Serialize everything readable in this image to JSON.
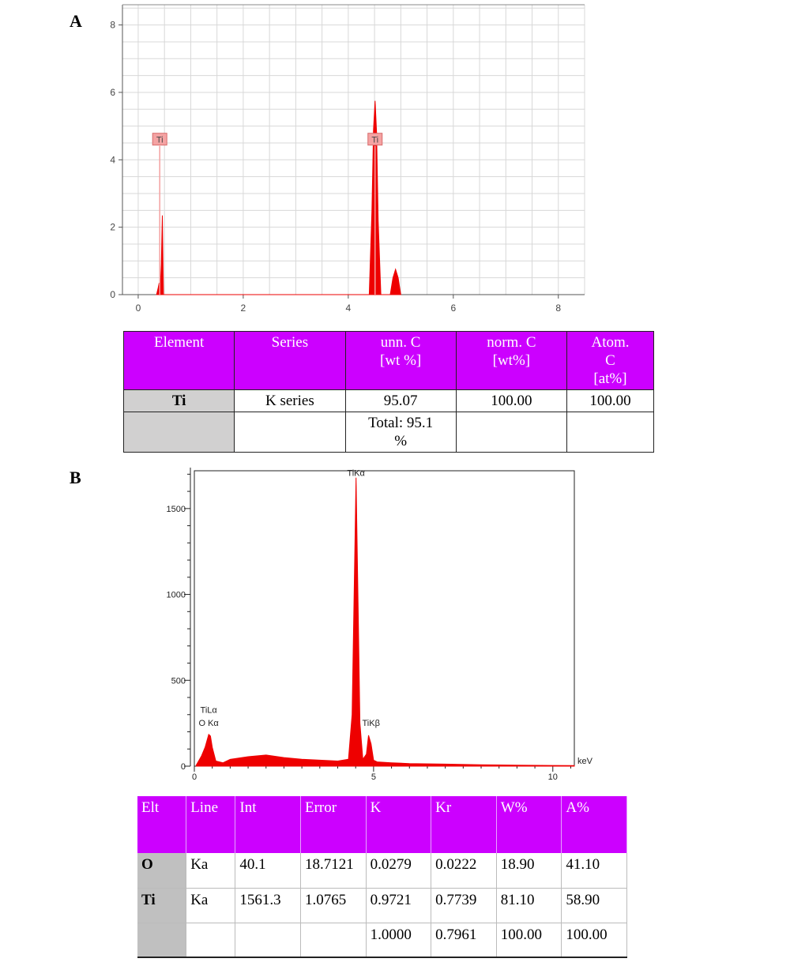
{
  "panel_a": {
    "label": "A",
    "chart_data": {
      "type": "area",
      "title": "",
      "xlabel": "",
      "ylabel": "",
      "xlim": [
        -0.3,
        8.5
      ],
      "ylim": [
        0,
        8.6
      ],
      "x_ticks": [
        "0",
        "2",
        "4",
        "6",
        "8"
      ],
      "y_ticks": [
        "0",
        "2",
        "4",
        "6",
        "8"
      ],
      "grid": true,
      "series": [
        {
          "x": [
            0.35,
            0.38,
            0.4,
            0.42,
            0.44,
            0.46,
            0.48,
            4.4,
            4.45,
            4.48,
            4.51,
            4.54,
            4.57,
            4.62,
            4.8,
            4.85,
            4.9,
            4.95,
            5.0
          ],
          "y": [
            0,
            0.2,
            0.35,
            0.2,
            0.9,
            2.35,
            0,
            0,
            2.5,
            4.9,
            5.75,
            4.8,
            2.2,
            0,
            0,
            0.5,
            0.75,
            0.5,
            0
          ]
        }
      ],
      "annotations": [
        {
          "text": "Ti",
          "x": 0.41,
          "y": 4.6
        },
        {
          "text": "Ti",
          "x": 4.51,
          "y": 4.6
        }
      ]
    },
    "table": {
      "headers": [
        "Element",
        "Series",
        "unn. C\n[wt %]",
        "norm. C\n[wt%]",
        "Atom.\nC\n[at%]"
      ],
      "rows": [
        [
          "Ti",
          "K series",
          "95.07",
          "100.00",
          "100.00"
        ],
        [
          "",
          "",
          "Total:  95.1\n%",
          "",
          ""
        ]
      ]
    }
  },
  "panel_b": {
    "label": "B",
    "chart_data": {
      "type": "area",
      "title": "",
      "xlabel": "keV",
      "ylabel": "",
      "xlim": [
        0,
        10.6
      ],
      "ylim": [
        0,
        1720
      ],
      "x_ticks": [
        "0",
        "5",
        "10"
      ],
      "y_ticks": [
        "0",
        "500",
        "1000",
        "1500"
      ],
      "grid": false,
      "series": [
        {
          "x": [
            0.05,
            0.2,
            0.3,
            0.4,
            0.45,
            0.5,
            0.6,
            0.8,
            1.0,
            1.5,
            2.0,
            2.5,
            3.0,
            3.5,
            4.0,
            4.3,
            4.4,
            4.45,
            4.51,
            4.57,
            4.62,
            4.7,
            4.8,
            4.86,
            4.93,
            5.0,
            5.1,
            5.5,
            6.0,
            7.0,
            8.0,
            9.0,
            10.0,
            10.6
          ],
          "y": [
            5,
            60,
            110,
            185,
            175,
            110,
            30,
            20,
            40,
            55,
            65,
            50,
            40,
            35,
            30,
            40,
            300,
            900,
            1680,
            900,
            250,
            40,
            70,
            180,
            130,
            35,
            25,
            20,
            15,
            12,
            8,
            6,
            4,
            3
          ]
        }
      ],
      "annotations": [
        {
          "text": "TiKα",
          "x": 4.51,
          "y": 1690
        },
        {
          "text": "TiLα",
          "x": 0.4,
          "y": 310
        },
        {
          "text": "O Kα",
          "x": 0.4,
          "y": 235
        },
        {
          "text": "TiKβ",
          "x": 4.93,
          "y": 235
        }
      ]
    },
    "table": {
      "headers": [
        "Elt",
        "Line",
        "Int",
        "Error",
        "K",
        "Kr",
        "W%",
        "A%"
      ],
      "rows": [
        [
          "O",
          "Ka",
          "40.1",
          "18.7121",
          "0.0279",
          "0.0222",
          "18.90",
          "41.10"
        ],
        [
          "Ti",
          "Ka",
          "1561.3",
          "1.0765",
          "0.9721",
          "0.7739",
          "81.10",
          "58.90"
        ],
        [
          "",
          "",
          "",
          "",
          "1.0000",
          "0.7961",
          "100.00",
          "100.00"
        ]
      ]
    }
  },
  "colors": {
    "spectrum": "#ee0000",
    "header_bg": "#cc00ff",
    "gray_cell": "#d1d0d0",
    "grid": "#d8d8d8"
  }
}
